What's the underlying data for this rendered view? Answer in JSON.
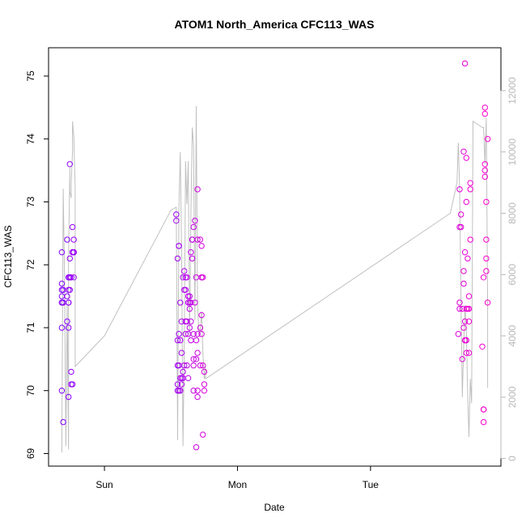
{
  "chart_data": {
    "type": "scatter",
    "title": "ATOM1 North_America CFC113_WAS",
    "xlabel": "Date",
    "ylabel": "CFC113_WAS",
    "x_axis": {
      "ticks": [
        "Sun",
        "Mon",
        "Tue"
      ],
      "range_days": [
        -0.42,
        2.98
      ]
    },
    "y_left": {
      "range": [
        68.8,
        75.45
      ],
      "ticks": [
        69,
        70,
        71,
        72,
        73,
        74,
        75
      ]
    },
    "y_right": {
      "range": [
        -250,
        13400
      ],
      "ticks": [
        0,
        2000,
        4000,
        6000,
        8000,
        10000,
        12000
      ],
      "color": "#b8b8b8",
      "line_color": "#c0c0c0"
    },
    "marker_colors": {
      "start": "#7f00ff",
      "end": "#ff00cc"
    },
    "grid": false,
    "legend": "none",
    "series": [
      {
        "kind": "points",
        "x": [
          -0.32,
          -0.32,
          -0.32,
          -0.32,
          -0.32,
          -0.32,
          -0.32,
          -0.32,
          -0.31,
          -0.31,
          -0.31,
          -0.28,
          -0.28,
          -0.28,
          -0.27,
          -0.27,
          -0.27,
          -0.27,
          -0.27,
          -0.27,
          -0.27,
          -0.26,
          -0.26,
          -0.26,
          -0.26,
          -0.26,
          -0.26,
          -0.25,
          -0.25,
          -0.25,
          -0.24,
          -0.24,
          -0.24,
          -0.24,
          -0.23,
          -0.23,
          -0.23,
          -0.23,
          -0.23,
          0.54,
          0.54,
          0.55,
          0.55,
          0.55,
          0.55,
          0.55,
          0.56,
          0.56,
          0.56,
          0.56,
          0.56,
          0.57,
          0.57,
          0.57,
          0.57,
          0.58,
          0.58,
          0.58,
          0.58,
          0.59,
          0.59,
          0.59,
          0.6,
          0.6,
          0.6,
          0.61,
          0.61,
          0.61,
          0.61,
          0.62,
          0.62,
          0.62,
          0.63,
          0.63,
          0.63,
          0.63,
          0.64,
          0.64,
          0.64,
          0.64,
          0.65,
          0.65,
          0.65,
          0.65,
          0.66,
          0.66,
          0.66,
          0.67,
          0.67,
          0.67,
          0.67,
          0.67,
          0.68,
          0.68,
          0.69,
          0.69,
          0.69,
          0.69,
          0.7,
          0.7,
          0.7,
          0.7,
          0.7,
          0.7,
          0.72,
          0.72,
          0.72,
          0.73,
          0.73,
          0.73,
          0.73,
          0.73,
          0.74,
          0.74,
          0.74,
          0.75,
          0.75,
          0.75,
          2.66,
          2.67,
          2.67,
          2.67,
          2.67,
          2.68,
          2.68,
          2.69,
          2.69,
          2.7,
          2.7,
          2.7,
          2.7,
          2.71,
          2.71,
          2.71,
          2.71,
          2.71,
          2.72,
          2.72,
          2.72,
          2.72,
          2.72,
          2.73,
          2.73,
          2.74,
          2.74,
          2.74,
          2.74,
          2.75,
          2.75,
          2.75,
          2.84,
          2.85,
          2.85,
          2.85,
          2.85,
          2.86,
          2.86,
          2.86,
          2.86,
          2.86,
          2.87,
          2.87,
          2.87,
          2.87,
          2.88,
          2.88
        ],
        "y": [
          72.2,
          71.7,
          71.6,
          71.5,
          71.4,
          71.4,
          71.0,
          70.0,
          69.5,
          71.4,
          71.6,
          71.1,
          71.5,
          72.4,
          71.0,
          69.9,
          71.4,
          71.4,
          71.6,
          71.8,
          71.8,
          72.1,
          71.6,
          71.8,
          71.8,
          73.6,
          71.8,
          71.8,
          70.1,
          70.3,
          70.1,
          72.6,
          72.2,
          72.2,
          72.2,
          72.4,
          72.2,
          72.2,
          71.8,
          72.8,
          72.7,
          72.1,
          70.8,
          70.4,
          70.1,
          70.0,
          72.3,
          72.3,
          70.9,
          70.4,
          70.0,
          71.4,
          70.8,
          70.2,
          70.0,
          71.1,
          70.6,
          70.2,
          70.1,
          71.8,
          70.2,
          70.3,
          71.9,
          70.4,
          71.6,
          71.6,
          71.8,
          71.1,
          70.9,
          71.8,
          70.4,
          71.1,
          71.4,
          70.2,
          70.9,
          71.5,
          71.5,
          71.3,
          71.4,
          71.0,
          71.1,
          71.4,
          72.2,
          70.8,
          72.4,
          72.1,
          72.4,
          72.6,
          70.9,
          70.5,
          70.4,
          70.0,
          71.4,
          72.7,
          71.8,
          70.5,
          69.1,
          70.8,
          70.0,
          69.9,
          70.9,
          72.4,
          73.2,
          70.6,
          70.4,
          72.4,
          71.0,
          70.9,
          71.8,
          71.2,
          72.3,
          71.8,
          70.4,
          69.3,
          71.8,
          70.1,
          70.3,
          70.0,
          70.9,
          73.2,
          72.6,
          71.3,
          71.4,
          72.8,
          72.6,
          70.5,
          71.3,
          73.8,
          71.0,
          71.7,
          71.9,
          75.2,
          70.8,
          72.2,
          71.1,
          70.8,
          70.8,
          71.3,
          73.7,
          73.0,
          70.6,
          72.1,
          71.3,
          71.5,
          70.6,
          71.1,
          71.3,
          73.3,
          73.2,
          72.4,
          70.7,
          71.8,
          69.7,
          69.7,
          69.5,
          73.4,
          73.5,
          74.4,
          74.5,
          73.6,
          72.1,
          71.9,
          73.0,
          72.4,
          71.4,
          74.0
        ],
        "color_gradient": "index"
      },
      {
        "kind": "line",
        "axis": "right",
        "x": [
          -0.32,
          -0.31,
          -0.3,
          -0.29,
          -0.28,
          -0.27,
          -0.27,
          -0.26,
          -0.26,
          -0.25,
          -0.25,
          -0.24,
          -0.24,
          -0.23,
          -0.22,
          -0.22,
          -0.22,
          0.0,
          0.5,
          0.54,
          0.55,
          0.56,
          0.57,
          0.58,
          0.59,
          0.6,
          0.61,
          0.62,
          0.63,
          0.64,
          0.65,
          0.66,
          0.67,
          0.68,
          0.69,
          0.7,
          0.71,
          0.72,
          0.73,
          0.74,
          0.75,
          0.76,
          0.76,
          2.6,
          2.65,
          2.66,
          2.67,
          2.68,
          2.69,
          2.7,
          2.71,
          2.72,
          2.73,
          2.74,
          2.75,
          2.76,
          2.77,
          2.84,
          2.85,
          2.86,
          2.87,
          2.88,
          2.88
        ],
        "y": [
          200,
          8800,
          6000,
          400,
          5000,
          300,
          6500,
          9500,
          8700,
          8500,
          9000,
          10000,
          11000,
          10500,
          8800,
          4000,
          3000,
          4000,
          8100,
          8200,
          600,
          8200,
          10000,
          6800,
          400,
          3500,
          9700,
          8300,
          9700,
          4000,
          8000,
          10800,
          10200,
          4500,
          11500,
          5000,
          4100,
          4200,
          4800,
          3500,
          2600,
          3000,
          2600,
          8000,
          9000,
          10300,
          8800,
          5000,
          2000,
          3700,
          5000,
          4200,
          2100,
          700,
          2600,
          1800,
          11000,
          10800,
          10800,
          9600,
          11100,
          5000,
          2300
        ]
      }
    ]
  }
}
